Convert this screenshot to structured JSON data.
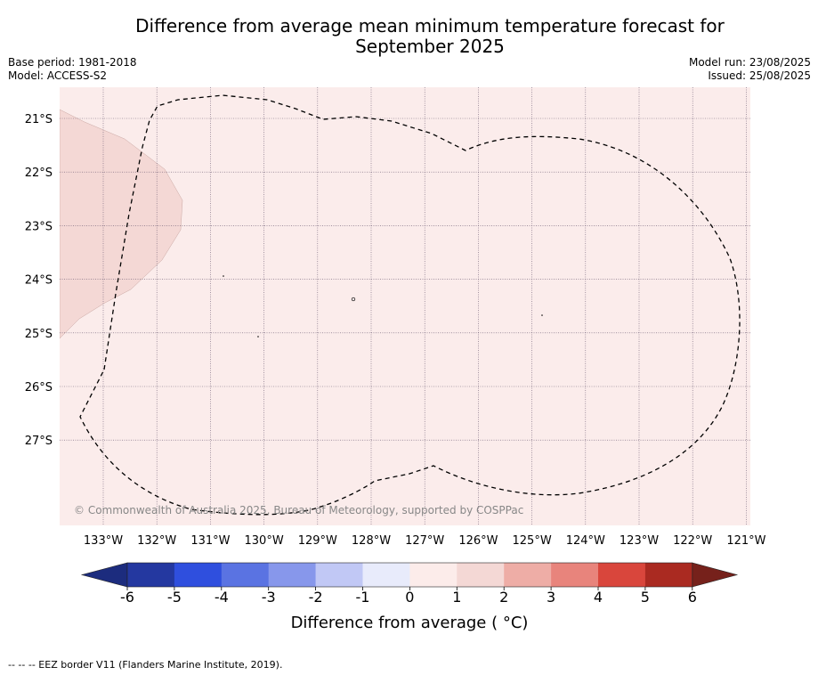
{
  "title_line1": "Difference from average mean minimum temperature forecast for",
  "title_line2": "September 2025",
  "base_period": "Base period: 1981-2018",
  "model": "Model: ACCESS-S2",
  "model_run": "Model run: 23/08/2025",
  "issued": "Issued: 25/08/2025",
  "copyright": "© Commonwealth of Australia 2025, Bureau of Meteorology, supported by COSPPac",
  "map": {
    "lat_labels": [
      "21°S",
      "22°S",
      "23°S",
      "24°S",
      "25°S",
      "26°S",
      "27°S"
    ],
    "lon_labels": [
      "133°W",
      "132°W",
      "131°W",
      "130°W",
      "129°W",
      "128°W",
      "127°W",
      "126°W",
      "125°W",
      "124°W",
      "123°W",
      "122°W",
      "121°W"
    ],
    "background_color": "#fbeceb",
    "anomaly_patch_color": "#f4d8d5",
    "eez_border_style": "dashed"
  },
  "colorbar": {
    "title": "Difference from average ( °C)",
    "ticks": [
      "-6",
      "-5",
      "-4",
      "-3",
      "-2",
      "-1",
      "0",
      "1",
      "2",
      "3",
      "4",
      "5",
      "6"
    ],
    "under_color": "#1c2c7e",
    "over_color": "#76211b",
    "colors": [
      "#2438a0",
      "#2f4fde",
      "#5a73e2",
      "#8797eb",
      "#c1c8f5",
      "#e8ebfb",
      "#fcecea",
      "#f4d8d5",
      "#eeada6",
      "#e8847c",
      "#d9463c",
      "#aa2a21"
    ]
  },
  "footnote": "--  --  -- EEZ border V11 (Flanders Marine Institute, 2019)."
}
